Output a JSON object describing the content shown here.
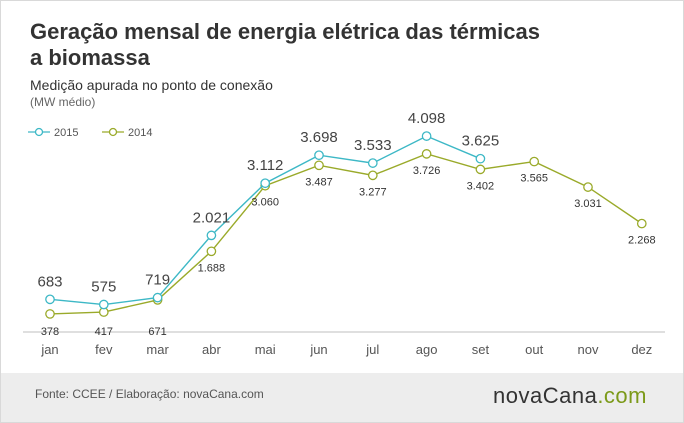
{
  "header": {
    "title": "Geração mensal de energia elétrica das térmicas a biomassa",
    "subtitle": "Medição apurada no ponto de conexão",
    "unit": "(MW médio)"
  },
  "footer": {
    "source": "Fonte: CCEE / Elaboração: novaCana.com",
    "brand_main": "novaCana",
    "brand_suffix": ".com"
  },
  "colors": {
    "series_2015": "#3db8c6",
    "series_2014": "#9aaa2a",
    "axis": "#bfbfbf",
    "text": "#333333",
    "background": "#ffffff",
    "footer_bg": "#ededed"
  },
  "chart_data": {
    "type": "line",
    "categories": [
      "jan",
      "fev",
      "mar",
      "abr",
      "mai",
      "jun",
      "jul",
      "ago",
      "set",
      "out",
      "nov",
      "dez"
    ],
    "series": [
      {
        "name": "2015",
        "values": [
          683,
          575,
          719,
          2021,
          3112,
          3698,
          3533,
          4098,
          3625,
          null,
          null,
          null
        ],
        "labels": [
          "683",
          "575",
          "719",
          "2.021",
          "3.112",
          "3.698",
          "3.533",
          "4.098",
          "3.625",
          null,
          null,
          null
        ]
      },
      {
        "name": "2014",
        "values": [
          378,
          417,
          671,
          1688,
          3060,
          3487,
          3277,
          3726,
          3402,
          3565,
          3031,
          2268
        ],
        "labels": [
          "378",
          "417",
          "671",
          "1.688",
          "3.060",
          "3.487",
          "3.277",
          "3.726",
          "3.402",
          "3.565",
          "3.031",
          "2.268"
        ]
      }
    ],
    "title": "Geração mensal de energia elétrica das térmicas a biomassa",
    "subtitle": "Medição apurada no ponto de conexão",
    "ylabel": "(MW médio)",
    "xlabel": "",
    "ylim": [
      0,
      4100
    ],
    "grid": false,
    "legend_position": "top-left"
  }
}
